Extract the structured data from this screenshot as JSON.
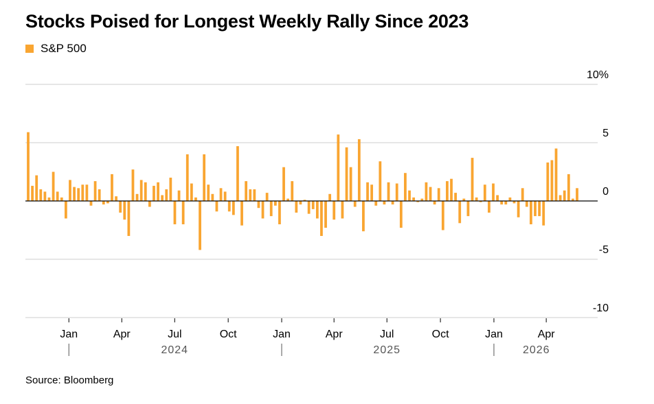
{
  "title": "Stocks Poised for Longest Weekly Rally Since 2023",
  "source": "Source: Bloomberg",
  "colors": {
    "bar": "#f9a531",
    "grid": "#cccccc",
    "axis": "#000000"
  },
  "chart_data": {
    "type": "bar",
    "legend": {
      "entries": [
        "S&P 500"
      ],
      "placement": "top-left"
    },
    "ylim": [
      -10,
      10
    ],
    "y_unit": "%",
    "y_ticks": [
      {
        "value": 10,
        "label": "10%"
      },
      {
        "value": 5,
        "label": "5"
      },
      {
        "value": 0,
        "label": "0"
      },
      {
        "value": -5,
        "label": "-5"
      },
      {
        "value": -10,
        "label": "-10"
      }
    ],
    "x_range": [
      "2023-10-23",
      "2026-05-24"
    ],
    "x_ticks": [
      {
        "date": "2024-01-01",
        "label": "Jan"
      },
      {
        "date": "2024-04-01",
        "label": "Apr"
      },
      {
        "date": "2024-07-01",
        "label": "Jul"
      },
      {
        "date": "2024-10-01",
        "label": "Oct"
      },
      {
        "date": "2025-01-01",
        "label": "Jan"
      },
      {
        "date": "2025-04-01",
        "label": "Apr"
      },
      {
        "date": "2025-07-01",
        "label": "Jul"
      },
      {
        "date": "2025-10-01",
        "label": "Oct"
      },
      {
        "date": "2026-01-01",
        "label": "Jan"
      },
      {
        "date": "2026-04-01",
        "label": "Apr"
      }
    ],
    "year_labels": [
      {
        "date": "2024-07-01",
        "label": "2024"
      },
      {
        "date": "2025-07-01",
        "label": "2025"
      },
      {
        "date": "2026-03-15",
        "label": "2026"
      }
    ],
    "year_dividers": [
      "2024-01-01",
      "2025-01-01",
      "2026-01-01"
    ],
    "grid": true,
    "series": [
      {
        "name": "S&P 500",
        "values": [
          5.9,
          1.3,
          2.2,
          1.0,
          0.8,
          0.3,
          2.5,
          0.8,
          0.3,
          -1.5,
          1.8,
          1.2,
          1.1,
          1.4,
          1.4,
          -0.4,
          1.7,
          1.0,
          -0.3,
          -0.2,
          2.3,
          0.4,
          -1.0,
          -1.6,
          -3.0,
          2.7,
          0.6,
          1.8,
          1.6,
          -0.5,
          1.3,
          1.6,
          0.5,
          1.0,
          2.0,
          -2.0,
          0.9,
          -2.0,
          4.0,
          1.5,
          0.3,
          -4.2,
          4.0,
          1.4,
          0.6,
          -0.9,
          1.1,
          0.8,
          -0.9,
          -1.2,
          4.7,
          -2.1,
          1.7,
          1.0,
          1.0,
          -0.6,
          -1.5,
          0.7,
          -1.3,
          -0.4,
          -2.0,
          2.9,
          0.2,
          1.7,
          -1.0,
          -0.3,
          0.1,
          -1.1,
          -0.7,
          -1.5,
          -3.0,
          -2.3,
          0.6,
          -1.6,
          5.7,
          -1.5,
          4.6,
          2.9,
          -0.5,
          5.3,
          -2.6,
          1.6,
          1.4,
          -0.4,
          3.4,
          -0.3,
          1.6,
          -0.3,
          1.5,
          -2.3,
          2.4,
          0.9,
          0.3,
          -0.1,
          0.2,
          1.6,
          1.2,
          -0.3,
          1.1,
          -2.5,
          1.7,
          1.9,
          0.7,
          -1.9,
          0.2,
          -1.3,
          3.7,
          0.3,
          -0.1,
          1.4,
          -1.0,
          1.5,
          0.5,
          -0.3,
          -0.3,
          0.3,
          -0.2,
          -1.4,
          1.1,
          -0.5,
          -2.0,
          -1.3,
          -1.3,
          -2.1,
          3.3,
          3.5,
          4.5,
          0.5,
          0.9,
          2.3,
          0.2,
          1.1
        ]
      }
    ]
  }
}
